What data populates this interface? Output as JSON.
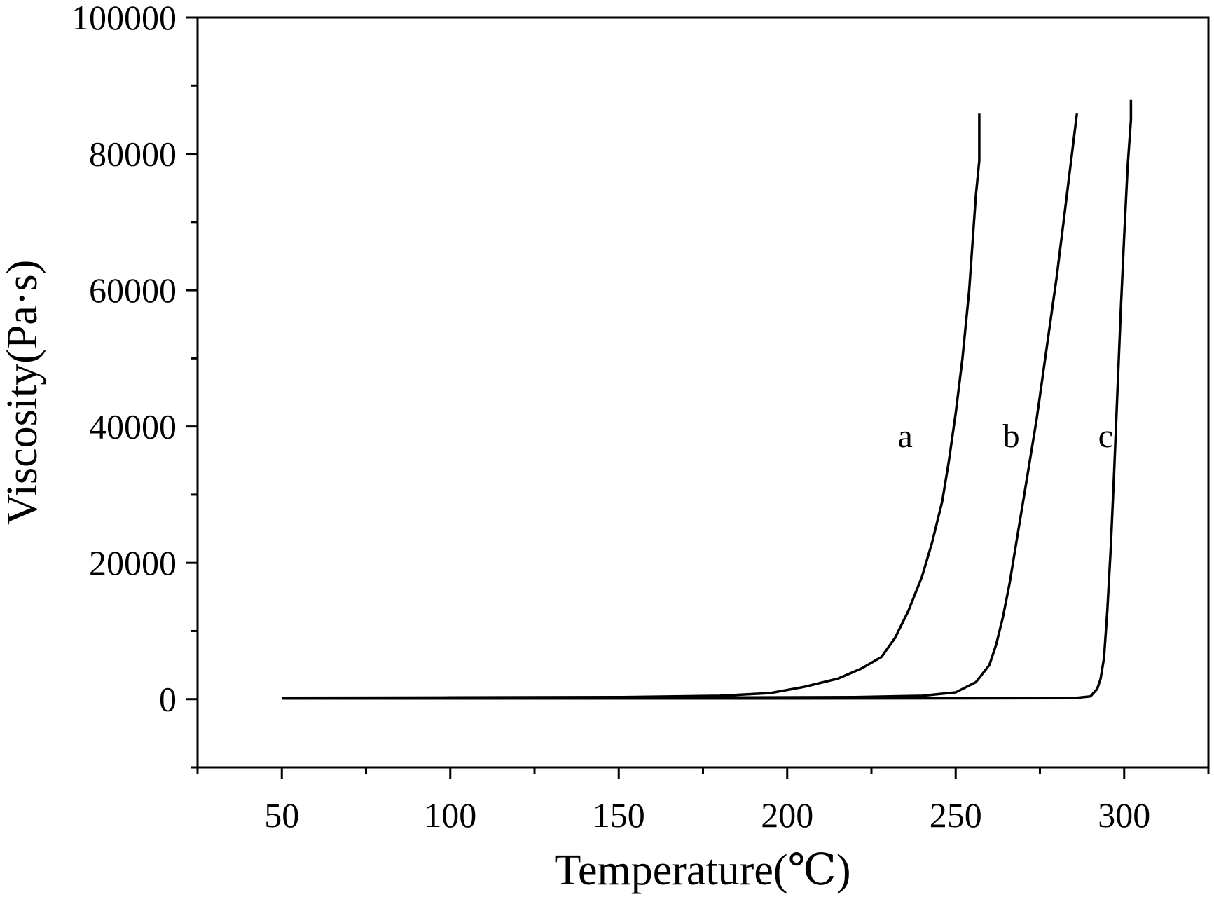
{
  "chart_data": {
    "type": "line",
    "title": "",
    "xlabel": "Temperature(℃)",
    "ylabel": "Viscosity(Pa·s)",
    "xlim": [
      25,
      325
    ],
    "ylim": [
      -10000,
      100000
    ],
    "x_ticks": [
      50,
      100,
      150,
      200,
      250,
      300
    ],
    "y_ticks": [
      0,
      20000,
      40000,
      60000,
      80000,
      100000
    ],
    "grid": false,
    "legend": "none",
    "series": [
      {
        "name": "a",
        "x": [
          50,
          100,
          150,
          180,
          195,
          205,
          215,
          222,
          228,
          232,
          236,
          240,
          243,
          246,
          248,
          250,
          252,
          254,
          255,
          256,
          257,
          257
        ],
        "y": [
          200,
          250,
          300,
          500,
          900,
          1800,
          3000,
          4500,
          6200,
          9000,
          13000,
          18000,
          23000,
          29000,
          35000,
          42000,
          50000,
          60000,
          67000,
          74000,
          79000,
          86000
        ]
      },
      {
        "name": "b",
        "x": [
          50,
          150,
          220,
          240,
          250,
          256,
          260,
          262,
          264,
          266,
          268,
          270,
          272,
          274,
          276,
          278,
          280,
          282,
          284,
          286
        ],
        "y": [
          100,
          200,
          300,
          500,
          1000,
          2500,
          5000,
          8000,
          12000,
          17000,
          23000,
          29000,
          35000,
          41000,
          48000,
          55000,
          62000,
          70000,
          78000,
          86000
        ]
      },
      {
        "name": "c",
        "x": [
          50,
          200,
          285,
          290,
          292,
          293,
          294,
          295,
          296,
          297,
          298,
          299,
          300,
          301,
          302,
          302
        ],
        "y": [
          100,
          100,
          150,
          400,
          1500,
          3000,
          6000,
          13000,
          22000,
          33000,
          45000,
          57000,
          68000,
          78000,
          85000,
          88000
        ]
      }
    ],
    "series_label_positions": [
      {
        "name": "a",
        "x": 235,
        "y": 37000
      },
      {
        "name": "b",
        "x": 266.5,
        "y": 37000
      },
      {
        "name": "c",
        "x": 294.5,
        "y": 37000
      }
    ]
  }
}
